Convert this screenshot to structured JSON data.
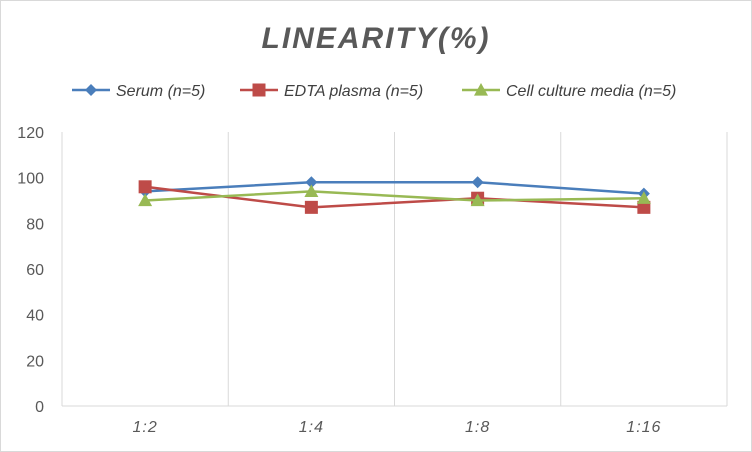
{
  "chart_data": {
    "type": "line",
    "title": "LINEARITY(%)",
    "xlabel": "",
    "ylabel": "",
    "categories": [
      "1:2",
      "1:4",
      "1:8",
      "1:16"
    ],
    "ylim": [
      0,
      120
    ],
    "yticks": [
      0,
      20,
      40,
      60,
      80,
      100,
      120
    ],
    "grid": "vertical-only",
    "legend_position": "top",
    "series": [
      {
        "name": "Serum (n=5)",
        "values": [
          94,
          98,
          98,
          93
        ],
        "color": "#4a7ebb",
        "marker": "diamond"
      },
      {
        "name": "EDTA plasma (n=5)",
        "values": [
          96,
          87,
          91,
          87
        ],
        "color": "#be4b48",
        "marker": "square"
      },
      {
        "name": "Cell culture media (n=5)",
        "values": [
          90,
          94,
          90,
          91
        ],
        "color": "#98b954",
        "marker": "triangle"
      }
    ]
  }
}
